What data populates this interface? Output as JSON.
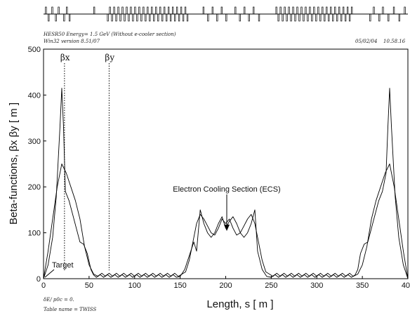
{
  "header": {
    "line1": "HESR50 Energy= 1.5 GeV (Without e-cooler section)",
    "line2": "Win32 version 8.51/07",
    "date": "05/02/04",
    "time": "10.58.16"
  },
  "footer": {
    "line1": "δE/ p0c  =   0.",
    "line2": "Table name = TWISS"
  },
  "chart_data": {
    "type": "line",
    "xlabel": "Length, s [ m ]",
    "ylabel": "Beta-functions, βx βy [ m ]",
    "xlim": [
      0,
      400
    ],
    "ylim": [
      0,
      500
    ],
    "xticks": [
      0,
      50,
      100,
      150,
      200,
      250,
      300,
      350,
      400
    ],
    "yticks": [
      0,
      100,
      200,
      300,
      400,
      500
    ],
    "grid": false,
    "legend_markers": [
      {
        "label": "βx",
        "x": 23
      },
      {
        "label": "βy",
        "x": 72
      }
    ],
    "annotations": [
      {
        "text": "Electron Cooling Section (ECS)",
        "x": 200,
        "y": 103
      },
      {
        "text": "Target",
        "x": 0,
        "y": 0
      }
    ],
    "series": [
      {
        "name": "βx",
        "x": [
          0,
          5,
          10,
          14,
          18,
          20,
          22,
          24,
          28,
          32,
          36,
          40,
          44,
          48,
          52,
          55,
          58,
          62,
          66,
          70,
          74,
          78,
          82,
          86,
          90,
          94,
          98,
          102,
          106,
          110,
          114,
          118,
          122,
          126,
          130,
          134,
          138,
          142,
          146,
          150,
          155,
          160,
          165,
          168,
          172,
          176,
          180,
          184,
          188,
          192,
          196,
          200,
          204,
          208,
          212,
          216,
          220,
          224,
          228,
          232,
          235,
          240,
          245,
          250,
          254,
          258,
          262,
          266,
          270,
          274,
          278,
          282,
          286,
          290,
          294,
          298,
          302,
          306,
          310,
          314,
          318,
          322,
          326,
          330,
          334,
          338,
          342,
          345,
          348,
          352,
          356,
          360,
          364,
          368,
          372,
          376,
          378,
          380,
          382,
          386,
          390,
          395,
          400
        ],
        "y": [
          0,
          30,
          90,
          180,
          330,
          415,
          330,
          190,
          170,
          140,
          110,
          80,
          75,
          55,
          20,
          8,
          3,
          9,
          3,
          9,
          3,
          9,
          3,
          9,
          3,
          9,
          3,
          9,
          3,
          9,
          3,
          9,
          3,
          9,
          3,
          9,
          3,
          9,
          3,
          5,
          20,
          50,
          80,
          60,
          150,
          120,
          100,
          90,
          100,
          120,
          135,
          110,
          125,
          135,
          120,
          100,
          90,
          100,
          120,
          150,
          60,
          20,
          5,
          3,
          9,
          3,
          9,
          3,
          9,
          3,
          9,
          3,
          9,
          3,
          9,
          3,
          9,
          3,
          9,
          3,
          9,
          3,
          9,
          3,
          9,
          3,
          8,
          20,
          55,
          75,
          80,
          110,
          140,
          170,
          190,
          230,
          330,
          415,
          330,
          180,
          90,
          30,
          0
        ]
      },
      {
        "name": "βy",
        "x": [
          0,
          5,
          10,
          15,
          20,
          25,
          30,
          35,
          40,
          45,
          50,
          55,
          60,
          64,
          68,
          72,
          76,
          80,
          84,
          88,
          92,
          96,
          100,
          104,
          108,
          112,
          116,
          120,
          124,
          128,
          132,
          136,
          140,
          144,
          148,
          152,
          156,
          160,
          164,
          168,
          172,
          176,
          180,
          184,
          188,
          192,
          196,
          200,
          204,
          208,
          212,
          216,
          220,
          224,
          228,
          232,
          236,
          240,
          244,
          248,
          252,
          256,
          260,
          264,
          268,
          272,
          276,
          280,
          284,
          288,
          292,
          296,
          300,
          304,
          308,
          312,
          316,
          320,
          324,
          328,
          332,
          336,
          340,
          345,
          350,
          355,
          360,
          365,
          370,
          375,
          380,
          385,
          390,
          395,
          400
        ],
        "y": [
          0,
          60,
          130,
          200,
          250,
          230,
          200,
          170,
          130,
          70,
          30,
          10,
          5,
          12,
          5,
          12,
          5,
          12,
          5,
          12,
          5,
          12,
          5,
          12,
          5,
          12,
          5,
          12,
          5,
          12,
          5,
          12,
          5,
          12,
          5,
          10,
          15,
          40,
          80,
          120,
          140,
          130,
          115,
          100,
          95,
          110,
          130,
          120,
          130,
          110,
          95,
          100,
          115,
          130,
          140,
          120,
          80,
          40,
          15,
          10,
          5,
          12,
          5,
          12,
          5,
          12,
          5,
          12,
          5,
          12,
          5,
          12,
          5,
          12,
          5,
          12,
          5,
          12,
          5,
          12,
          5,
          12,
          5,
          10,
          30,
          70,
          130,
          170,
          200,
          230,
          250,
          200,
          130,
          60,
          0
        ]
      }
    ]
  }
}
